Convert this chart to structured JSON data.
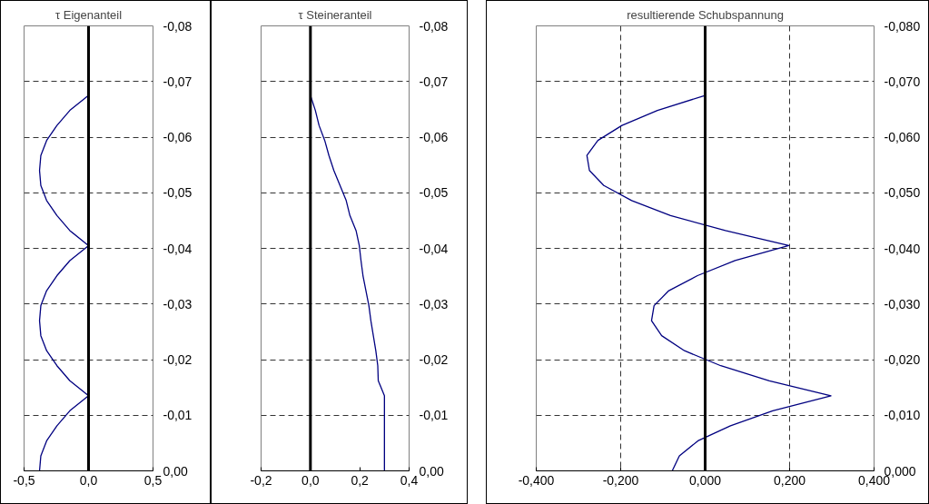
{
  "chart_data": [
    {
      "type": "line",
      "title": "τ Eigenanteil",
      "grid": "y",
      "xlim": [
        -0.5,
        0.5
      ],
      "ylim": [
        0,
        -0.08
      ],
      "xticks": [
        {
          "value": -0.5,
          "label": "-0,5"
        },
        {
          "value": 0,
          "label": "0,0"
        },
        {
          "value": 0.5,
          "label": "0,5"
        }
      ],
      "yticks": [
        {
          "value": 0,
          "label": "0,00"
        },
        {
          "value": -0.01,
          "label": "-0,01"
        },
        {
          "value": -0.02,
          "label": "-0,02"
        },
        {
          "value": -0.03,
          "label": "-0,03"
        },
        {
          "value": -0.04,
          "label": "-0,04"
        },
        {
          "value": -0.05,
          "label": "-0,05"
        },
        {
          "value": -0.06,
          "label": "-0,06"
        },
        {
          "value": -0.07,
          "label": "-0,07"
        },
        {
          "value": -0.08,
          "label": "-0,08"
        }
      ],
      "series": [
        {
          "color": "#000080",
          "x": [
            -0.38,
            -0.37,
            -0.325,
            -0.245,
            -0.145,
            0,
            -0.145,
            -0.245,
            -0.325,
            -0.37,
            -0.38,
            -0.37,
            -0.325,
            -0.245,
            -0.145,
            0,
            -0.145,
            -0.245,
            -0.325,
            -0.37,
            -0.38,
            -0.37,
            -0.325,
            -0.245,
            -0.145,
            0
          ],
          "values": [
            0,
            -0.0027,
            -0.0054,
            -0.0081,
            -0.0108,
            -0.0135,
            -0.0162,
            -0.0189,
            -0.0216,
            -0.0243,
            -0.027,
            -0.0297,
            -0.0324,
            -0.0351,
            -0.0378,
            -0.0405,
            -0.0432,
            -0.0459,
            -0.0486,
            -0.0513,
            -0.054,
            -0.0567,
            -0.0594,
            -0.0621,
            -0.0648,
            -0.0675
          ]
        }
      ]
    },
    {
      "type": "line",
      "title": "τ Steineranteil",
      "grid": "y",
      "xlim": [
        -0.2,
        0.4
      ],
      "ylim": [
        0,
        -0.08
      ],
      "xticks": [
        {
          "value": -0.2,
          "label": "-0,2"
        },
        {
          "value": 0,
          "label": "0,0"
        },
        {
          "value": 0.2,
          "label": "0,2"
        },
        {
          "value": 0.4,
          "label": "0,4"
        }
      ],
      "yticks": [
        {
          "value": 0,
          "label": "0,00"
        },
        {
          "value": -0.01,
          "label": "-0,01"
        },
        {
          "value": -0.02,
          "label": "-0,02"
        },
        {
          "value": -0.03,
          "label": "-0,03"
        },
        {
          "value": -0.04,
          "label": "-0,04"
        },
        {
          "value": -0.05,
          "label": "-0,05"
        },
        {
          "value": -0.06,
          "label": "-0,06"
        },
        {
          "value": -0.07,
          "label": "-0,07"
        },
        {
          "value": -0.08,
          "label": "-0,08"
        }
      ],
      "series": [
        {
          "color": "#000080",
          "x": [
            0.3,
            0.3,
            0.3,
            0.3,
            0.3,
            0.3,
            0.275,
            0.273,
            0.265,
            0.255,
            0.245,
            0.237,
            0.225,
            0.213,
            0.205,
            0.198,
            0.185,
            0.16,
            0.145,
            0.12,
            0.095,
            0.075,
            0.058,
            0.035,
            0.02,
            0
          ],
          "values": [
            0,
            -0.0027,
            -0.0054,
            -0.0081,
            -0.0108,
            -0.0135,
            -0.0162,
            -0.0189,
            -0.0216,
            -0.0243,
            -0.027,
            -0.0297,
            -0.0324,
            -0.0351,
            -0.0378,
            -0.0405,
            -0.0432,
            -0.0459,
            -0.0486,
            -0.0513,
            -0.054,
            -0.0567,
            -0.0594,
            -0.0621,
            -0.0648,
            -0.0675
          ]
        }
      ]
    },
    {
      "type": "line",
      "title": "resultierende Schubspannung",
      "grid": true,
      "xlim": [
        -0.4,
        0.4
      ],
      "ylim": [
        0,
        -0.08
      ],
      "xticks": [
        {
          "value": -0.4,
          "label": "-0,400"
        },
        {
          "value": -0.2,
          "label": "-0,200"
        },
        {
          "value": 0,
          "label": "0,000"
        },
        {
          "value": 0.2,
          "label": "0,200"
        },
        {
          "value": 0.4,
          "label": "0,400"
        }
      ],
      "yticks": [
        {
          "value": 0,
          "label": "0,000"
        },
        {
          "value": -0.01,
          "label": "-0,010"
        },
        {
          "value": -0.02,
          "label": "-0,020"
        },
        {
          "value": -0.03,
          "label": "-0,030"
        },
        {
          "value": -0.04,
          "label": "-0,040"
        },
        {
          "value": -0.05,
          "label": "-0,050"
        },
        {
          "value": -0.06,
          "label": "-0,060"
        },
        {
          "value": -0.07,
          "label": "-0,070"
        },
        {
          "value": -0.08,
          "label": "-0,080"
        }
      ],
      "series": [
        {
          "color": "#000080",
          "x": [
            -0.078,
            -0.061,
            -0.017,
            0.06,
            0.16,
            0.298,
            0.152,
            0.037,
            -0.049,
            -0.103,
            -0.127,
            -0.121,
            -0.086,
            -0.018,
            0.071,
            0.198,
            0.048,
            -0.082,
            -0.174,
            -0.24,
            -0.274,
            -0.28,
            -0.254,
            -0.197,
            -0.113,
            0
          ],
          "values": [
            0,
            -0.0027,
            -0.0054,
            -0.0081,
            -0.0108,
            -0.0135,
            -0.0162,
            -0.0189,
            -0.0216,
            -0.0243,
            -0.027,
            -0.0297,
            -0.0324,
            -0.0351,
            -0.0378,
            -0.0405,
            -0.0432,
            -0.0459,
            -0.0486,
            -0.0513,
            -0.054,
            -0.0567,
            -0.0594,
            -0.0621,
            -0.0648,
            -0.0675
          ]
        }
      ]
    }
  ]
}
